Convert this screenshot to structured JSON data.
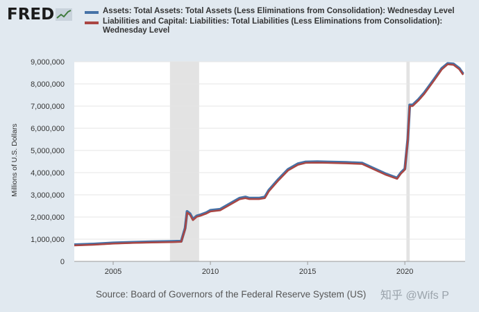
{
  "brand": {
    "logo_text": "FRED",
    "watermark": "知乎 @Wifs P"
  },
  "source_text": "Source: Board of Governors of the Federal Reserve System (US)",
  "chart_data": {
    "type": "line",
    "ylabel": "Millions of U.S. Dollars",
    "xlabel": "",
    "xlim": [
      2003.0,
      2023.1
    ],
    "ylim": [
      0,
      9000000
    ],
    "x_ticks": [
      2005,
      2010,
      2015,
      2020
    ],
    "x_tick_labels": [
      "2005",
      "2010",
      "2015",
      "2020"
    ],
    "y_ticks": [
      0,
      1000000,
      2000000,
      3000000,
      4000000,
      5000000,
      6000000,
      7000000,
      8000000,
      9000000
    ],
    "y_tick_labels": [
      "0",
      "1,000,000",
      "2,000,000",
      "3,000,000",
      "4,000,000",
      "5,000,000",
      "6,000,000",
      "7,000,000",
      "8,000,000",
      "9,000,000"
    ],
    "recessions": [
      {
        "start": 2007.92,
        "end": 2009.42
      },
      {
        "start": 2020.08,
        "end": 2020.25
      }
    ],
    "series": [
      {
        "name": "Assets: Total Assets: Total Assets (Less Eliminations from Consolidation): Wednesday Level",
        "color": "#4572a7",
        "x": [
          2003.0,
          2004.0,
          2005.0,
          2006.0,
          2007.0,
          2008.0,
          2008.5,
          2008.7,
          2008.8,
          2008.95,
          2009.1,
          2009.3,
          2009.5,
          2009.8,
          2010.0,
          2010.5,
          2011.0,
          2011.5,
          2011.8,
          2012.0,
          2012.5,
          2012.8,
          2013.0,
          2013.5,
          2014.0,
          2014.5,
          2014.9,
          2015.5,
          2016.0,
          2017.0,
          2017.8,
          2018.5,
          2019.0,
          2019.6,
          2019.8,
          2020.0,
          2020.15,
          2020.25,
          2020.4,
          2020.7,
          2021.0,
          2021.5,
          2021.9,
          2022.2,
          2022.5,
          2022.8,
          2023.0
        ],
        "values": [
          750000,
          780000,
          830000,
          860000,
          880000,
          900000,
          910000,
          1500000,
          2250000,
          2150000,
          1900000,
          2050000,
          2100000,
          2200000,
          2300000,
          2350000,
          2600000,
          2850000,
          2900000,
          2850000,
          2850000,
          2900000,
          3200000,
          3700000,
          4150000,
          4400000,
          4480000,
          4490000,
          4480000,
          4460000,
          4430000,
          4150000,
          3950000,
          3760000,
          4000000,
          4170000,
          5500000,
          7050000,
          7050000,
          7300000,
          7600000,
          8200000,
          8700000,
          8920000,
          8900000,
          8700000,
          8450000
        ]
      },
      {
        "name": "Liabilities and Capital: Liabilities: Total Liabilities (Less Eliminations from Consolidation): Wednesday Level",
        "color": "#aa4643",
        "x": [
          2003.0,
          2004.0,
          2005.0,
          2006.0,
          2007.0,
          2008.0,
          2008.5,
          2008.7,
          2008.8,
          2008.95,
          2009.1,
          2009.3,
          2009.5,
          2009.8,
          2010.0,
          2010.5,
          2011.0,
          2011.5,
          2011.8,
          2012.0,
          2012.5,
          2012.8,
          2013.0,
          2013.5,
          2014.0,
          2014.5,
          2014.9,
          2015.5,
          2016.0,
          2017.0,
          2017.8,
          2018.5,
          2019.0,
          2019.6,
          2019.8,
          2020.0,
          2020.15,
          2020.25,
          2020.4,
          2020.7,
          2021.0,
          2021.5,
          2021.9,
          2022.2,
          2022.5,
          2022.8,
          2023.0
        ],
        "values": [
          720000,
          750000,
          800000,
          830000,
          850000,
          870000,
          880000,
          1450000,
          2200000,
          2100000,
          1860000,
          2010000,
          2060000,
          2160000,
          2250000,
          2300000,
          2550000,
          2800000,
          2850000,
          2810000,
          2810000,
          2850000,
          3150000,
          3650000,
          4100000,
          4350000,
          4440000,
          4450000,
          4440000,
          4420000,
          4390000,
          4110000,
          3910000,
          3720000,
          3960000,
          4130000,
          5450000,
          7000000,
          7000000,
          7250000,
          7550000,
          8150000,
          8650000,
          8880000,
          8860000,
          8660000,
          8410000
        ]
      }
    ]
  }
}
